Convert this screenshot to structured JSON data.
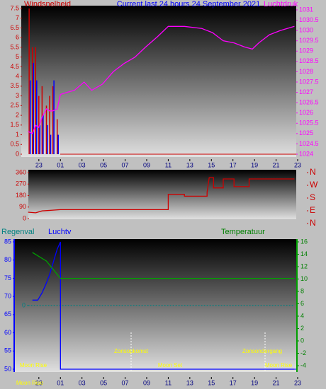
{
  "chart_data": [
    {
      "type": "combo",
      "title": "Current last 24 hours 24 September 2021",
      "y_label": "Windsnelheid",
      "y2_label": "Luchtdruk",
      "xlim": [
        21.5,
        47
      ],
      "xticks": [
        23,
        {
          "value": 25,
          "label": "01"
        },
        {
          "value": 27,
          "label": "03"
        },
        {
          "value": 29,
          "label": "05"
        },
        {
          "value": 31,
          "label": "07"
        },
        {
          "value": 33,
          "label": "09"
        },
        {
          "value": 35,
          "label": "11"
        },
        {
          "value": 37,
          "label": "13"
        },
        {
          "value": 39,
          "label": "15"
        },
        {
          "value": 41,
          "label": "17"
        },
        {
          "value": 43,
          "label": "19"
        },
        {
          "value": 45,
          "label": "21"
        },
        {
          "value": 47,
          "label": "23"
        }
      ],
      "ylim": [
        0,
        7.5
      ],
      "yticks": [
        0,
        0.5,
        1,
        1.5,
        2,
        2.5,
        3,
        3.5,
        4,
        4.5,
        5,
        5.5,
        6,
        6.5,
        7,
        7.5
      ],
      "y2lim": [
        1024,
        1031
      ],
      "y2ticks": [
        1024,
        1024.5,
        1025,
        1025.5,
        1026,
        1026.5,
        1027,
        1027.5,
        1028,
        1028.5,
        1029,
        1029.5,
        1030,
        1030.5,
        1031
      ],
      "series": [
        {
          "kind": "bar",
          "color": "#cc0000",
          "x": [
            22.1,
            22.4,
            22.7,
            23.0,
            23.3,
            23.7,
            24.0,
            24.3,
            24.7
          ],
          "values": [
            7.5,
            5.5,
            5.5,
            3,
            3.5,
            2.5,
            3,
            3.5,
            1.8
          ]
        },
        {
          "kind": "bar",
          "color": "#0000ff",
          "x": [
            22.2,
            22.5,
            22.8,
            23.1,
            23.4,
            23.8,
            24.1,
            24.4,
            24.8
          ],
          "values": [
            3.8,
            4.7,
            3.8,
            1.5,
            2,
            1.5,
            1,
            3.8,
            1
          ]
        },
        {
          "kind": "line",
          "axis": "y2",
          "color": "#ff00ff",
          "x": [
            22.0,
            22.4,
            22.7,
            23.0,
            23.3,
            23.7,
            24.0,
            24.3,
            24.7,
            25.0,
            25.6,
            26.3,
            27.2,
            27.9,
            28.9,
            29.9,
            30.9,
            31.9,
            32.9,
            34.0,
            35.0,
            36.5,
            38.1,
            39.1,
            40.1,
            41.1,
            42.1,
            42.8,
            43.4,
            44.4,
            45.4,
            46.7
          ],
          "values": [
            1025.1,
            1025.0,
            1025.4,
            1025.3,
            1025.8,
            1026.2,
            1026.1,
            1026.1,
            1026.2,
            1026.9,
            1027.0,
            1027.1,
            1027.5,
            1027.1,
            1027.4,
            1028.0,
            1028.4,
            1028.7,
            1029.2,
            1029.7,
            1030.2,
            1030.2,
            1030.1,
            1029.9,
            1029.5,
            1029.4,
            1029.2,
            1029.1,
            1029.4,
            1029.8,
            1030.0,
            1030.2
          ]
        }
      ]
    },
    {
      "type": "line",
      "xlim": [
        21.5,
        47
      ],
      "ylim": [
        0,
        360
      ],
      "yticks": [
        0,
        90,
        180,
        270,
        360
      ],
      "y2lim": [
        0,
        360
      ],
      "y2ticks": [
        {
          "value": 0,
          "label": "N"
        },
        {
          "value": 90,
          "label": "E"
        },
        {
          "value": 180,
          "label": "S"
        },
        {
          "value": 270,
          "label": "W"
        },
        {
          "value": 360,
          "label": "N"
        }
      ],
      "series": [
        {
          "kind": "line",
          "color": "#cc0000",
          "x": [
            22.0,
            22.7,
            23.3,
            25.0,
            35.0,
            35.0,
            36.5,
            36.5,
            38.6,
            38.6,
            38.8,
            39.2,
            39.2,
            40.1,
            40.1,
            41.1,
            41.1,
            42.5,
            42.5,
            46.7
          ],
          "values": [
            50,
            45,
            60,
            70,
            70,
            190,
            190,
            175,
            175,
            205,
            320,
            320,
            240,
            240,
            310,
            310,
            250,
            250,
            310,
            310
          ]
        }
      ]
    },
    {
      "type": "line",
      "y3_label": "Regenval",
      "y_label": "Luchtv",
      "y2_label": "Temperatuur",
      "xlim": [
        21.5,
        47
      ],
      "xticks": [
        23,
        {
          "value": 25,
          "label": "01"
        },
        {
          "value": 27,
          "label": "03"
        },
        {
          "value": 29,
          "label": "05"
        },
        {
          "value": 31,
          "label": "07"
        },
        {
          "value": 33,
          "label": "09"
        },
        {
          "value": 35,
          "label": "11"
        },
        {
          "value": 37,
          "label": "13"
        },
        {
          "value": 39,
          "label": "15"
        },
        {
          "value": 41,
          "label": "17"
        },
        {
          "value": 43,
          "label": "19"
        },
        {
          "value": 45,
          "label": "21"
        },
        {
          "value": 47,
          "label": "23"
        }
      ],
      "ylim": [
        50,
        85
      ],
      "yticks": [
        50,
        55,
        60,
        65,
        70,
        75,
        80,
        85
      ],
      "y2lim": [
        -4,
        16
      ],
      "y2ticks": [
        -4,
        -2,
        0,
        2,
        4,
        6,
        8,
        10,
        12,
        14,
        16
      ],
      "y3lim": [
        -1,
        1
      ],
      "y3ticks": [
        0
      ],
      "annotations": [
        "Moon Rise",
        "Zonsopkomst",
        "Moon Set",
        "Zonsondergang",
        "Moon Rise",
        "Moon Rise"
      ],
      "series": [
        {
          "kind": "line",
          "axis": "y3",
          "color": "#008080",
          "dash": true,
          "x": [
            22.0,
            46.7
          ],
          "values": [
            0,
            0
          ]
        },
        {
          "kind": "line",
          "color": "#0000ff",
          "x": [
            22.4,
            22.9,
            23.3,
            23.6,
            24.0,
            24.4,
            24.7,
            25.0,
            25.0,
            46.7
          ],
          "values": [
            69,
            69,
            71,
            73,
            76,
            80,
            83,
            85,
            50,
            50
          ]
        },
        {
          "kind": "line",
          "axis": "y2",
          "color": "#00a000",
          "x": [
            22.4,
            23.7,
            25.0,
            46.7
          ],
          "values": [
            14.3,
            12.9,
            10.1,
            10.1
          ]
        }
      ]
    }
  ]
}
